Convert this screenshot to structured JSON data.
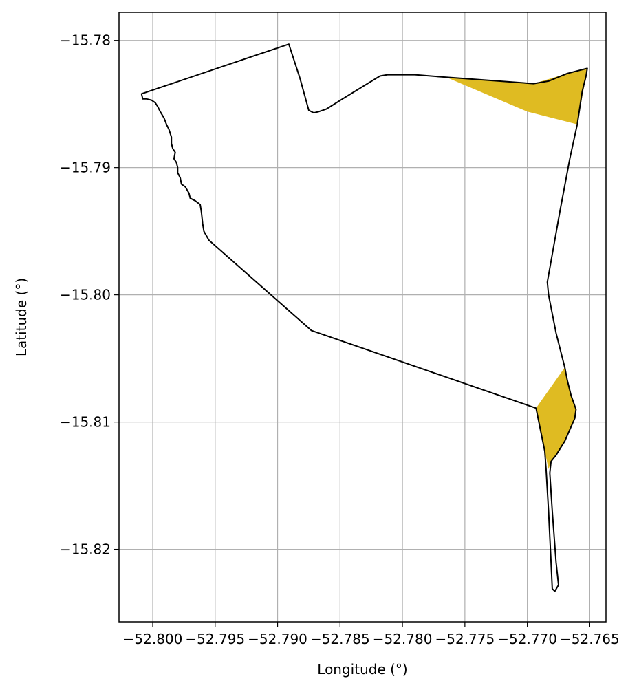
{
  "chart_data": {
    "type": "map",
    "title": "",
    "xlabel": "Longitude (°)",
    "ylabel": "Latitude (°)",
    "xlim": [
      -52.8027,
      -52.7637
    ],
    "ylim": [
      -15.8257,
      -15.7778
    ],
    "xticks": [
      {
        "value": -52.8,
        "label": "−52.800"
      },
      {
        "value": -52.795,
        "label": "−52.795"
      },
      {
        "value": -52.79,
        "label": "−52.790"
      },
      {
        "value": -52.785,
        "label": "−52.785"
      },
      {
        "value": -52.78,
        "label": "−52.780"
      },
      {
        "value": -52.775,
        "label": "−52.775"
      },
      {
        "value": -52.77,
        "label": "−52.770"
      },
      {
        "value": -52.765,
        "label": "−52.765"
      }
    ],
    "yticks": [
      {
        "value": -15.78,
        "label": "−15.78"
      },
      {
        "value": -15.79,
        "label": "−15.79"
      },
      {
        "value": -15.8,
        "label": "−15.80"
      },
      {
        "value": -15.81,
        "label": "−15.81"
      },
      {
        "value": -15.82,
        "label": "−15.82"
      }
    ],
    "grid": true,
    "colors": {
      "fill": "#dfbb22",
      "outline": "#000000",
      "grid": "#b0b0b0"
    },
    "filled_regions": [
      {
        "name": "north-east-patch",
        "points": [
          [
            -52.7765,
            -15.7829
          ],
          [
            -52.7695,
            -15.7834
          ],
          [
            -52.7668,
            -15.7826
          ],
          [
            -52.7652,
            -15.7822
          ],
          [
            -52.7653,
            -15.7828
          ],
          [
            -52.766,
            -15.7866
          ],
          [
            -52.77,
            -15.7856
          ]
        ]
      },
      {
        "name": "south-east-patch",
        "points": [
          [
            -52.7693,
            -15.8089
          ],
          [
            -52.767,
            -15.8057
          ],
          [
            -52.7668,
            -15.8067
          ],
          [
            -52.7665,
            -15.8079
          ],
          [
            -52.7661,
            -15.809
          ],
          [
            -52.7662,
            -15.8097
          ],
          [
            -52.767,
            -15.8115
          ],
          [
            -52.7677,
            -15.8126
          ],
          [
            -52.7681,
            -15.8131
          ],
          [
            -52.7683,
            -15.8137
          ],
          [
            -52.7686,
            -15.8123
          ]
        ]
      }
    ],
    "outline": [
      [
        -52.8009,
        -15.7842
      ],
      [
        -52.7891,
        -15.7803
      ],
      [
        -52.7882,
        -15.783
      ],
      [
        -52.7875,
        -15.7855
      ],
      [
        -52.7871,
        -15.7857
      ],
      [
        -52.7867,
        -15.7856
      ],
      [
        -52.7861,
        -15.7854
      ],
      [
        -52.7848,
        -15.7846
      ],
      [
        -52.7818,
        -15.7828
      ],
      [
        -52.7812,
        -15.7827
      ],
      [
        -52.779,
        -15.7827
      ],
      [
        -52.7765,
        -15.7829
      ],
      [
        -52.7695,
        -15.7834
      ],
      [
        -52.7683,
        -15.7832
      ],
      [
        -52.7668,
        -15.7826
      ],
      [
        -52.7652,
        -15.7822
      ],
      [
        -52.7653,
        -15.7828
      ],
      [
        -52.7656,
        -15.784
      ],
      [
        -52.766,
        -15.7866
      ],
      [
        -52.7666,
        -15.7893
      ],
      [
        -52.7674,
        -15.7935
      ],
      [
        -52.7684,
        -15.799
      ],
      [
        -52.7683,
        -15.8
      ],
      [
        -52.7677,
        -15.803
      ],
      [
        -52.767,
        -15.8057
      ],
      [
        -52.7668,
        -15.8067
      ],
      [
        -52.7665,
        -15.8079
      ],
      [
        -52.7661,
        -15.809
      ],
      [
        -52.7662,
        -15.8097
      ],
      [
        -52.767,
        -15.8115
      ],
      [
        -52.7677,
        -15.8126
      ],
      [
        -52.7681,
        -15.8131
      ],
      [
        -52.7682,
        -15.814
      ],
      [
        -52.768,
        -15.817
      ],
      [
        -52.7677,
        -15.821
      ],
      [
        -52.7675,
        -15.8228
      ],
      [
        -52.7678,
        -15.8233
      ],
      [
        -52.768,
        -15.8231
      ],
      [
        -52.7681,
        -15.821
      ],
      [
        -52.7683,
        -15.817
      ],
      [
        -52.7685,
        -15.8137
      ],
      [
        -52.7686,
        -15.8123
      ],
      [
        -52.7693,
        -15.8089
      ],
      [
        -52.7873,
        -15.8028
      ],
      [
        -52.7955,
        -15.7957
      ],
      [
        -52.7959,
        -15.795
      ],
      [
        -52.796,
        -15.7944
      ],
      [
        -52.7961,
        -15.7935
      ],
      [
        -52.7962,
        -15.7929
      ],
      [
        -52.7966,
        -15.7926
      ],
      [
        -52.797,
        -15.7924
      ],
      [
        -52.7971,
        -15.792
      ],
      [
        -52.7974,
        -15.7915
      ],
      [
        -52.7977,
        -15.7913
      ],
      [
        -52.7978,
        -15.7908
      ],
      [
        -52.798,
        -15.7904
      ],
      [
        -52.798,
        -15.79
      ],
      [
        -52.7981,
        -15.7896
      ],
      [
        -52.7983,
        -15.7893
      ],
      [
        -52.7982,
        -15.7888
      ],
      [
        -52.7984,
        -15.7885
      ],
      [
        -52.7985,
        -15.7881
      ],
      [
        -52.7985,
        -15.7876
      ],
      [
        -52.7987,
        -15.787
      ],
      [
        -52.7989,
        -15.7866
      ],
      [
        -52.7991,
        -15.7861
      ],
      [
        -52.7994,
        -15.7856
      ],
      [
        -52.7996,
        -15.7852
      ],
      [
        -52.7998,
        -15.7849
      ],
      [
        -52.8001,
        -15.7847
      ],
      [
        -52.8005,
        -15.7846
      ],
      [
        -52.8008,
        -15.7846
      ],
      [
        -52.8009,
        -15.7842
      ]
    ]
  }
}
